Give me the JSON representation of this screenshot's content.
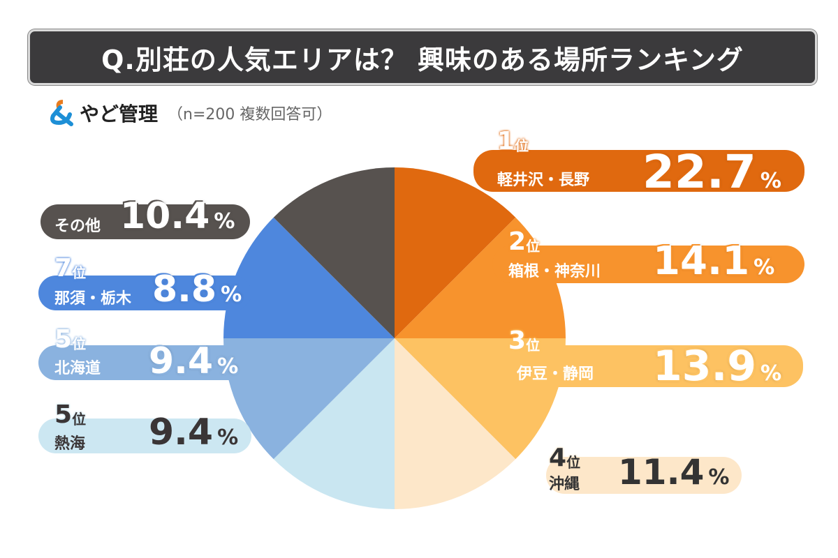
{
  "title": "Q.別荘の人気エリアは？ 興味のある場所ランキング",
  "brand": {
    "logo": "&",
    "name": "やど管理",
    "note": "（n=200 複数回答可）"
  },
  "chart_data": {
    "type": "pie",
    "title": "Q.別荘の人気エリアは？ 興味のある場所ランキング",
    "unit": "%",
    "categories": [
      "軽井沢・長野",
      "箱根・神奈川",
      "伊豆・静岡",
      "沖縄",
      "熱海",
      "北海道",
      "那須・栃木",
      "その他"
    ],
    "ranks": [
      "1位",
      "2位",
      "3位",
      "4位",
      "5位",
      "5位",
      "7位",
      ""
    ],
    "values": [
      22.7,
      14.1,
      13.9,
      11.4,
      9.4,
      9.4,
      8.8,
      10.4
    ],
    "colors": [
      "#e0690f",
      "#f7932d",
      "#fdc262",
      "#fde7c9",
      "#c9e6f1",
      "#8ab2df",
      "#4e87dd",
      "#57524f"
    ]
  }
}
